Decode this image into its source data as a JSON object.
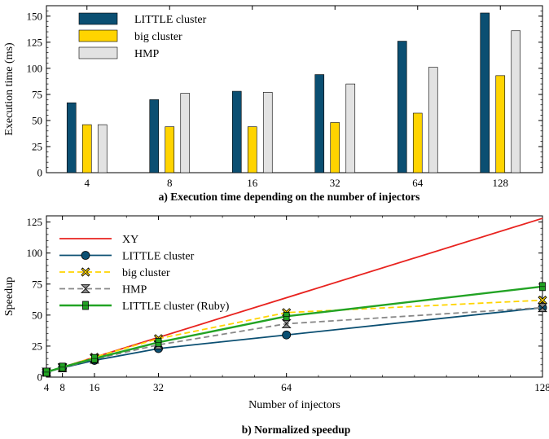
{
  "chart_data": [
    {
      "type": "bar",
      "caption": "a) Execution time depending on the number of injectors",
      "ylabel": "Execution time (ms)",
      "xlabel": "",
      "ylim": [
        0,
        160
      ],
      "yticks": [
        "0",
        "25",
        "50",
        "75",
        "100",
        "125",
        "150"
      ],
      "categories": [
        "4",
        "8",
        "16",
        "32",
        "64",
        "128"
      ],
      "series": [
        {
          "name": "LITTLE cluster",
          "color": "#0b4f72",
          "values": [
            67,
            70,
            78,
            94,
            126,
            153
          ]
        },
        {
          "name": "big cluster",
          "color": "#ffd400",
          "values": [
            46,
            44,
            44,
            48,
            57,
            93
          ]
        },
        {
          "name": "HMP",
          "color": "#e2e2e2",
          "values": [
            46,
            76,
            77,
            85,
            101,
            136
          ]
        }
      ],
      "legend_position": "top-left",
      "grid": false
    },
    {
      "type": "line",
      "caption": "b) Normalized speedup",
      "xlabel": "Number of injectors",
      "ylabel": "Speedup",
      "xlim": [
        4,
        128
      ],
      "ylim": [
        0,
        130
      ],
      "xticks": [
        "4",
        "8",
        "16",
        "32",
        "64",
        "128"
      ],
      "yticks": [
        "0",
        "25",
        "50",
        "75",
        "100",
        "125"
      ],
      "series": [
        {
          "name": "XY",
          "color": "#e8231f",
          "style": "solid",
          "marker": "none",
          "x": [
            4,
            128
          ],
          "y": [
            4,
            128
          ]
        },
        {
          "name": "LITTLE cluster",
          "color": "#0b4f72",
          "style": "solid",
          "marker": "circle",
          "x": [
            4,
            8,
            16,
            32,
            64,
            128
          ],
          "y": [
            4,
            7.5,
            13.5,
            23,
            34,
            56
          ]
        },
        {
          "name": "big cluster",
          "color": "#ffd400",
          "style": "dashed",
          "marker": "x",
          "x": [
            4,
            8,
            16,
            32,
            64,
            128
          ],
          "y": [
            4,
            8,
            16,
            31,
            52,
            62
          ]
        },
        {
          "name": "HMP",
          "color": "#888888",
          "style": "dashed",
          "marker": "hourglass",
          "x": [
            4,
            8,
            16,
            32,
            64,
            128
          ],
          "y": [
            4,
            7.5,
            14.5,
            26,
            43,
            56
          ]
        },
        {
          "name": "LITTLE cluster (Ruby)",
          "color": "#22a324",
          "style": "solid",
          "marker": "square",
          "x": [
            4,
            8,
            16,
            32,
            64,
            128
          ],
          "y": [
            4,
            8,
            15,
            28,
            49,
            73
          ]
        }
      ],
      "legend_position": "top-left",
      "grid": false
    }
  ]
}
